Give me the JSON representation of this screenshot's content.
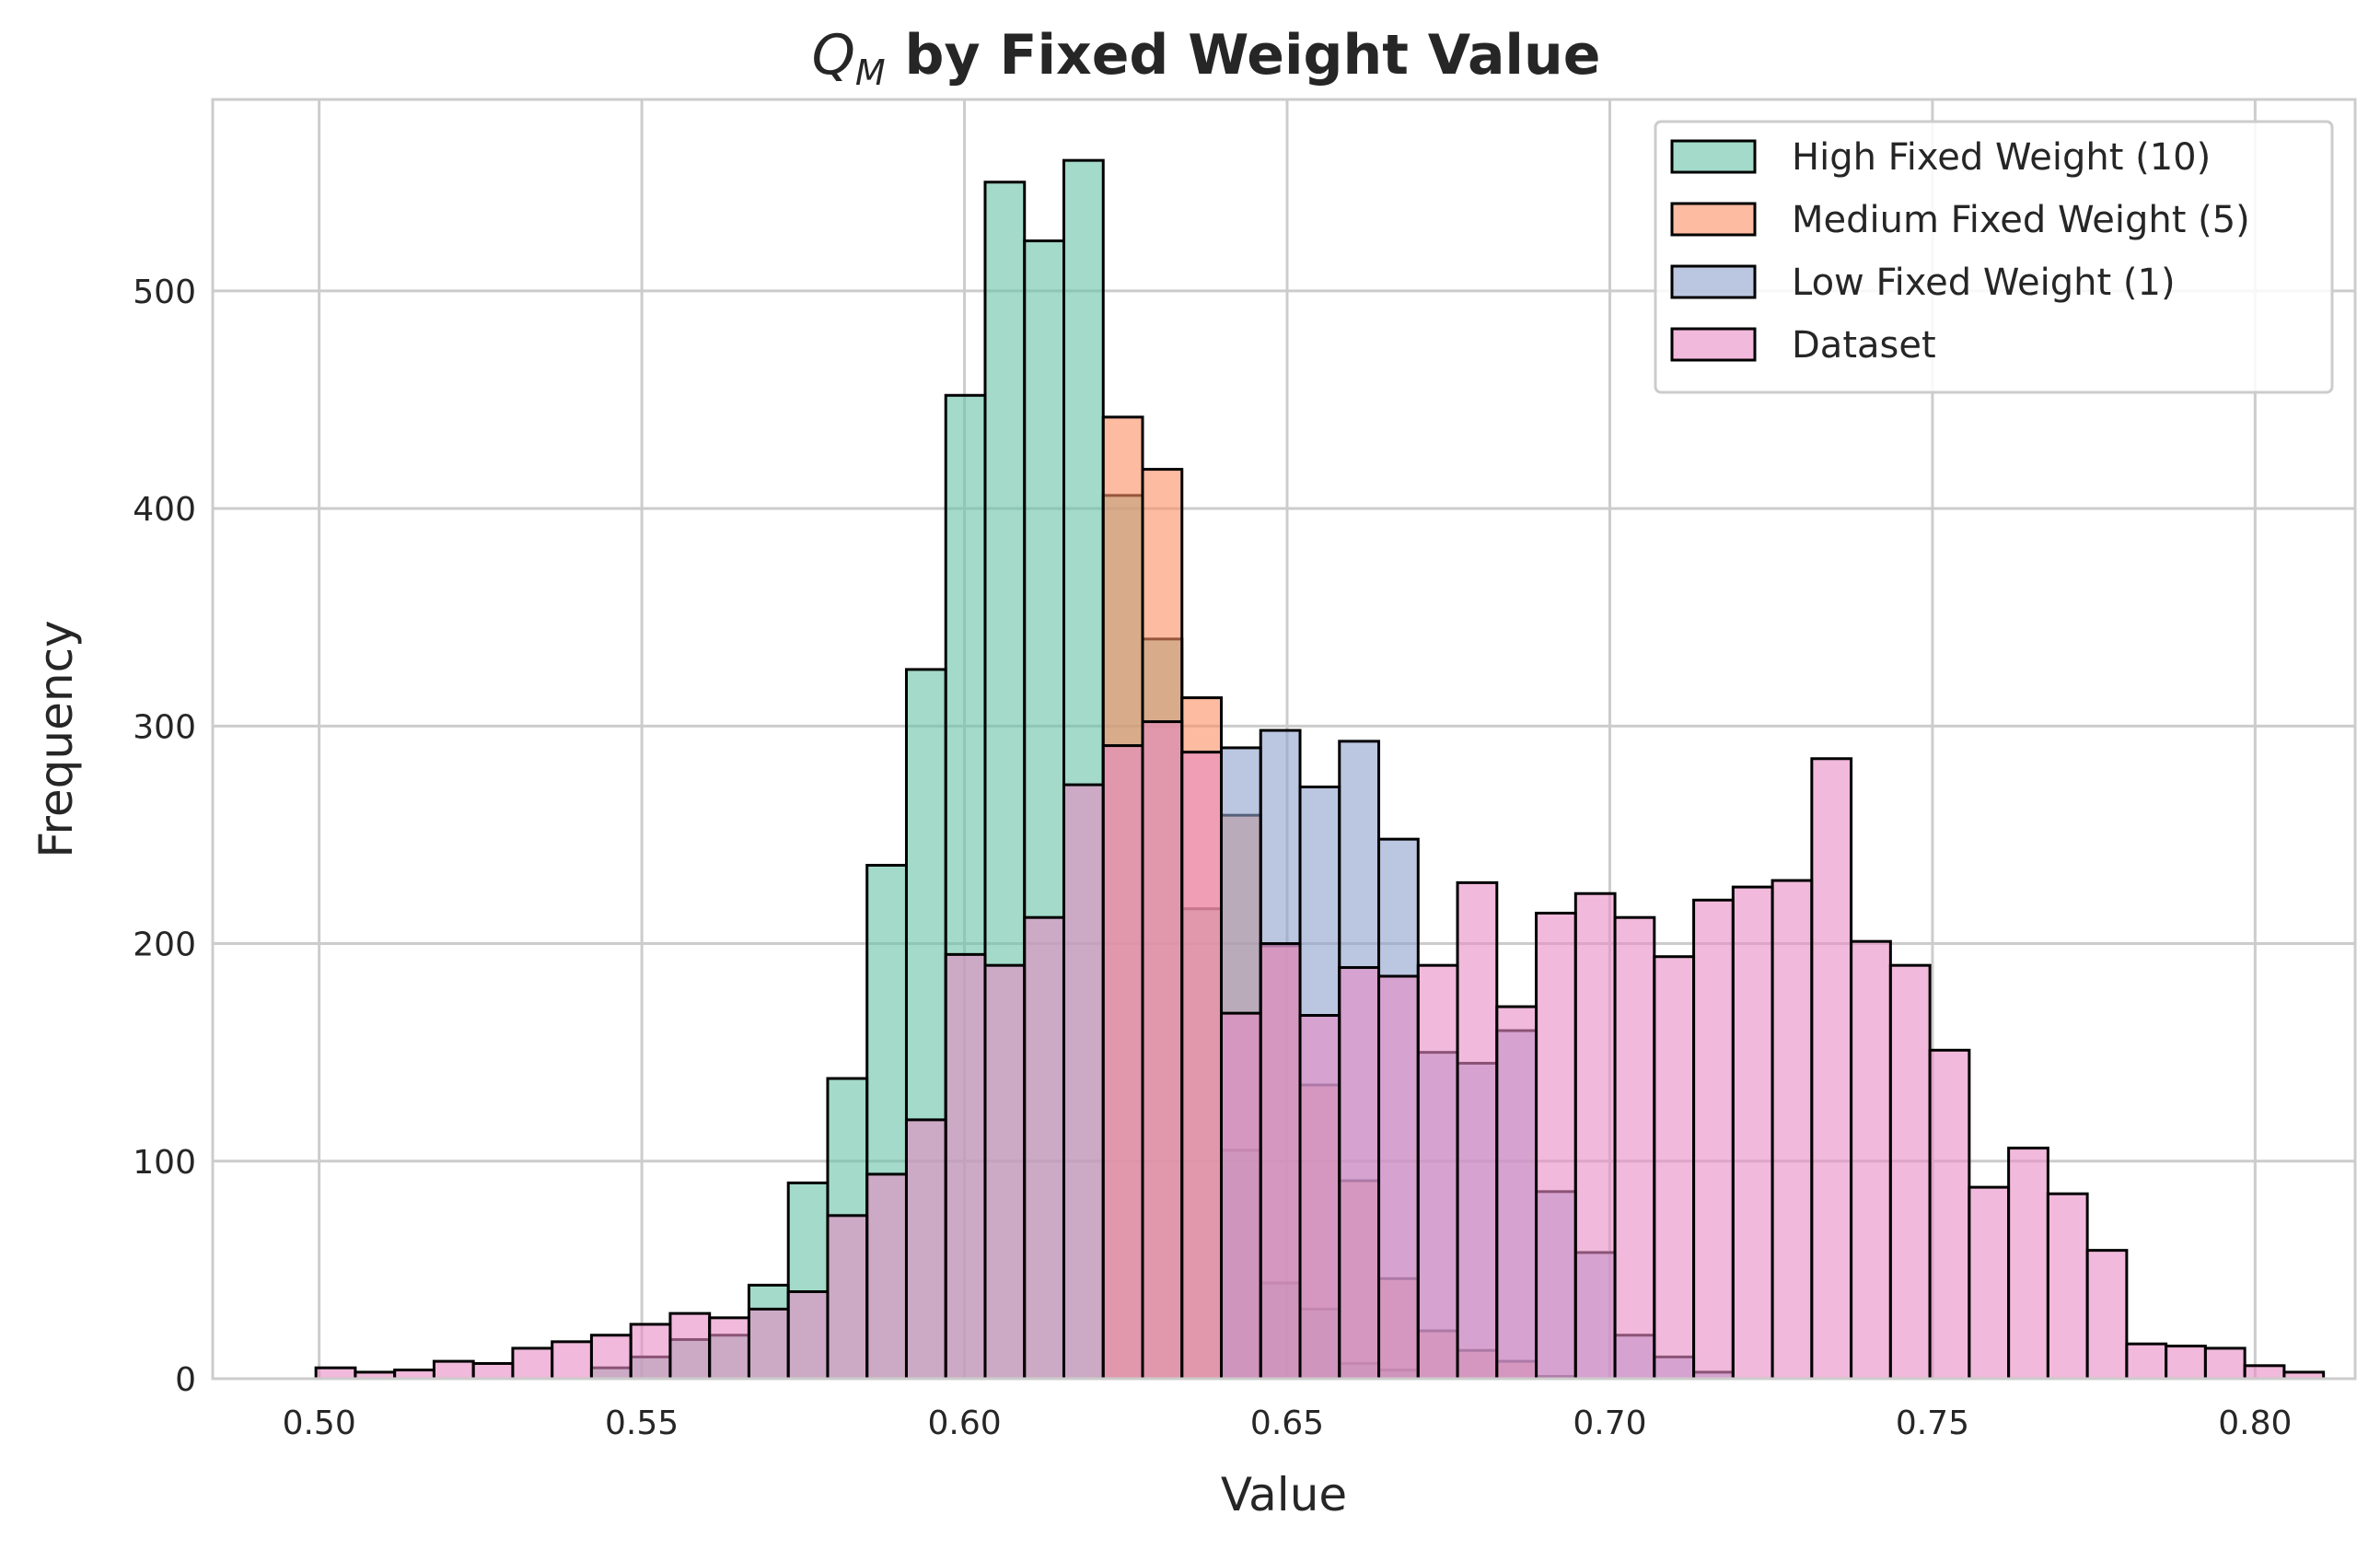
{
  "chart_data": {
    "type": "bar",
    "title_symbol": "Q",
    "title_subscript": "M",
    "title_rest": " by Fixed Weight Value",
    "xlabel": "Value",
    "ylabel": "Frequency",
    "xlim": [
      0.4835,
      0.8155
    ],
    "ylim": [
      0,
      588
    ],
    "x_ticks": [
      0.5,
      0.55,
      0.6,
      0.65,
      0.7,
      0.75,
      0.8
    ],
    "x_tick_labels": [
      "0.50",
      "0.55",
      "0.60",
      "0.65",
      "0.70",
      "0.75",
      "0.80"
    ],
    "y_ticks": [
      0,
      100,
      200,
      300,
      400,
      500
    ],
    "y_tick_labels": [
      "0",
      "100",
      "200",
      "300",
      "400",
      "500"
    ],
    "grid": true,
    "legend_position": "top-right",
    "bin_start": 0.4995,
    "bin_width": 0.0061,
    "series": [
      {
        "name": "High Fixed Weight (10)",
        "color": "#66c2a5",
        "values": [
          0,
          0,
          0,
          0,
          0,
          0,
          0,
          5,
          10,
          18,
          20,
          43,
          90,
          138,
          236,
          326,
          452,
          550,
          523,
          560,
          406,
          340,
          216,
          105,
          44,
          32,
          7,
          4,
          0,
          0,
          0,
          0,
          0,
          0,
          0,
          0,
          0,
          0,
          0,
          0,
          0,
          0,
          0,
          0,
          0,
          0,
          0,
          0,
          0,
          0,
          0,
          0,
          0,
          0,
          0
        ]
      },
      {
        "name": "Medium Fixed Weight (5)",
        "color": "#fc8d62",
        "values": [
          0,
          0,
          0,
          0,
          0,
          0,
          0,
          0,
          0,
          0,
          0,
          0,
          0,
          0,
          0,
          0,
          0,
          0,
          0,
          0,
          442,
          418,
          313,
          259,
          199,
          135,
          91,
          46,
          22,
          13,
          8,
          1,
          0,
          0,
          0,
          0,
          0,
          0,
          0,
          0,
          0,
          0,
          0,
          0,
          0,
          0,
          0,
          0,
          0,
          0,
          0,
          0,
          0,
          0,
          0
        ]
      },
      {
        "name": "Low Fixed Weight (1)",
        "color": "#8da0cb",
        "values": [
          0,
          0,
          0,
          0,
          0,
          0,
          0,
          0,
          0,
          0,
          0,
          0,
          0,
          0,
          0,
          0,
          0,
          0,
          0,
          0,
          0,
          0,
          0,
          290,
          298,
          272,
          293,
          248,
          150,
          145,
          160,
          86,
          58,
          20,
          10,
          3,
          0,
          0,
          0,
          0,
          0,
          0,
          0,
          0,
          0,
          0,
          0,
          0,
          0,
          0,
          0,
          0,
          0,
          0,
          0
        ]
      },
      {
        "name": "Dataset",
        "color": "#e78ac3",
        "values": [
          5,
          3,
          4,
          8,
          7,
          14,
          17,
          20,
          25,
          30,
          28,
          32,
          40,
          75,
          94,
          119,
          195,
          190,
          212,
          273,
          291,
          302,
          288,
          168,
          200,
          167,
          189,
          185,
          190,
          228,
          171,
          214,
          223,
          212,
          194,
          220,
          226,
          229,
          285,
          201,
          190,
          151,
          88,
          106,
          85,
          59,
          16,
          15,
          14,
          6,
          3,
          0,
          0,
          0,
          0
        ]
      }
    ]
  }
}
